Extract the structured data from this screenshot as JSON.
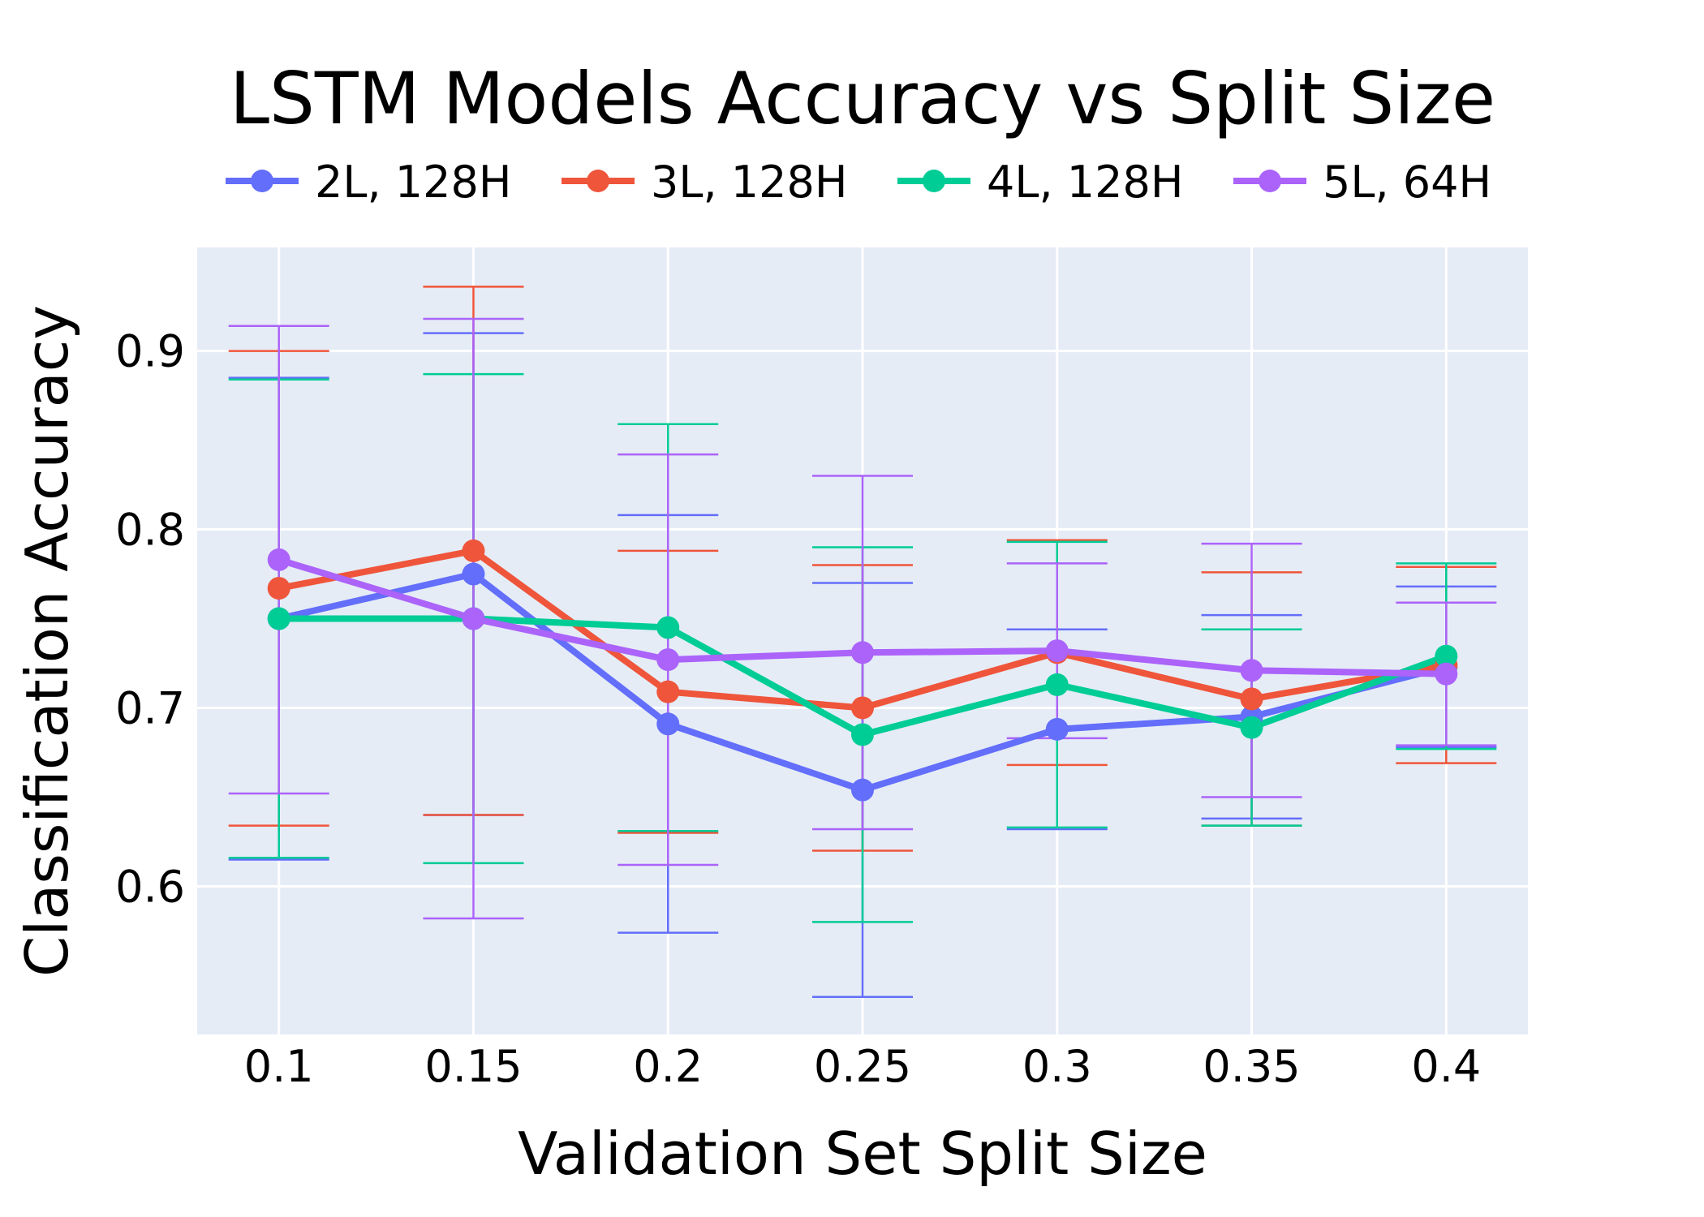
{
  "chart_data": {
    "type": "line",
    "title": "LSTM Models Accuracy vs Split Size",
    "xlabel": "Validation Set Split Size",
    "ylabel": "Classification Accuracy",
    "x": [
      0.1,
      0.15,
      0.2,
      0.25,
      0.3,
      0.35,
      0.4
    ],
    "x_tick_labels": [
      "0.1",
      "0.15",
      "0.2",
      "0.25",
      "0.3",
      "0.35",
      "0.4"
    ],
    "xlim": [
      0.079,
      0.421
    ],
    "ylim": [
      0.517,
      0.958
    ],
    "y_ticks": [
      0.6,
      0.7,
      0.8,
      0.9
    ],
    "y_tick_labels": [
      "0.6",
      "0.7",
      "0.8",
      "0.9"
    ],
    "grid": true,
    "legend_position": "top",
    "plot_background": "#e5ecf6",
    "series": [
      {
        "name": "2L, 128H",
        "color": "#636efa",
        "values": [
          0.75,
          0.775,
          0.691,
          0.654,
          0.688,
          0.695,
          0.723
        ],
        "error": [
          0.135,
          0.135,
          0.117,
          0.116,
          0.056,
          0.057,
          0.045
        ]
      },
      {
        "name": "3L, 128H",
        "color": "#ef553b",
        "values": [
          0.767,
          0.788,
          0.709,
          0.7,
          0.731,
          0.705,
          0.724
        ],
        "error": [
          0.133,
          0.148,
          0.079,
          0.08,
          0.063,
          0.071,
          0.055
        ]
      },
      {
        "name": "4L, 128H",
        "color": "#00cc96",
        "values": [
          0.75,
          0.75,
          0.745,
          0.685,
          0.713,
          0.689,
          0.729
        ],
        "error": [
          0.134,
          0.137,
          0.114,
          0.105,
          0.08,
          0.055,
          0.052
        ]
      },
      {
        "name": "5L, 64H",
        "color": "#ab63fa",
        "values": [
          0.783,
          0.75,
          0.727,
          0.731,
          0.732,
          0.721,
          0.719
        ],
        "error": [
          0.131,
          0.168,
          0.115,
          0.099,
          0.049,
          0.071,
          0.04
        ]
      }
    ]
  }
}
